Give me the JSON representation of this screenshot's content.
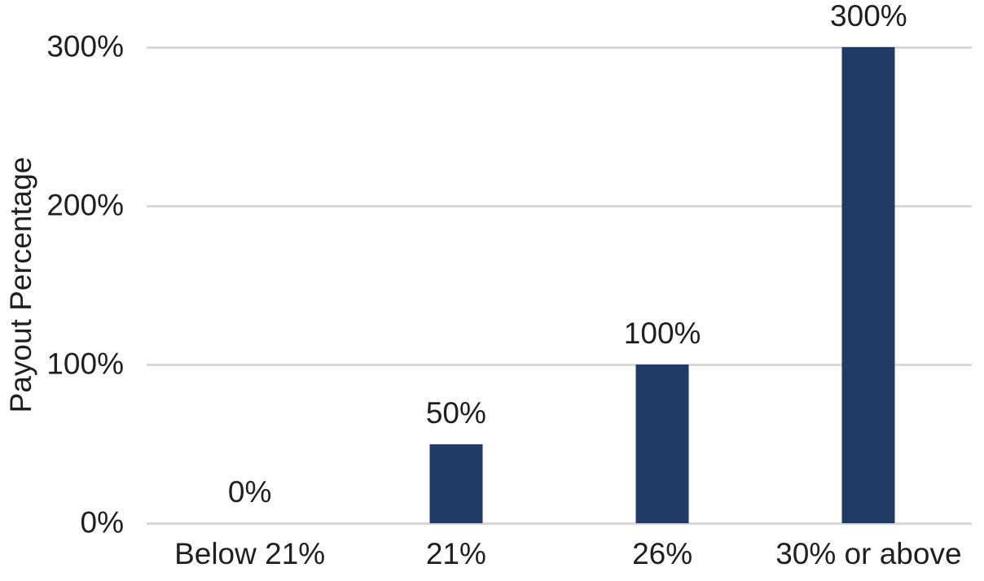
{
  "chart_data": {
    "type": "bar",
    "title": "",
    "xlabel": "",
    "ylabel": "Payout Percentage",
    "categories": [
      "Below 21%",
      "21%",
      "26%",
      "30% or above"
    ],
    "values": [
      0,
      50,
      100,
      300
    ],
    "data_labels": [
      "0%",
      "50%",
      "100%",
      "300%"
    ],
    "ytick_values": [
      0,
      100,
      200,
      300
    ],
    "ytick_labels": [
      "0%",
      "100%",
      "200%",
      "300%"
    ],
    "ylim": [
      0,
      300
    ],
    "grid": "horizontal",
    "legend": "none",
    "bar_color": "#1f3b66",
    "gridline_color": "#d8d8d8",
    "text_color": "#1f1f1f",
    "background_color": "#ffffff"
  }
}
